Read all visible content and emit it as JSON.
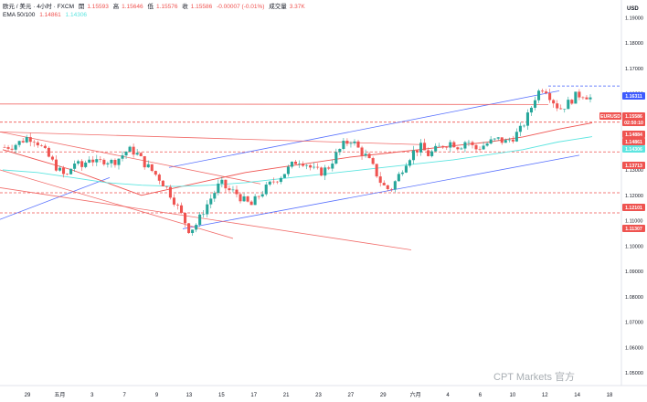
{
  "header": {
    "symbol_line": "欧元 / 美元 · 4小时 · FXCM",
    "open_label": "開",
    "open_value": "1.15593",
    "high_label": "高",
    "high_value": "1.15646",
    "low_label": "低",
    "low_value": "1.15576",
    "close_label": "收",
    "close_value": "1.15586",
    "change": "-0.00007 (-0.01%)",
    "volume_label": "成交量",
    "volume_value": "3.37K",
    "ema_label": "EMA 50/100",
    "ema50_value": "1.14861",
    "ema100_value": "1.14306"
  },
  "currency": "USD",
  "watermark": "CPT Markets 官方",
  "chart_data": {
    "type": "candlestick",
    "interval": "4h",
    "symbol": "EURUSD",
    "y_axis": {
      "ticks": [
        1.19,
        1.18,
        1.17,
        1.16,
        1.15,
        1.14,
        1.13,
        1.12,
        1.11,
        1.1,
        1.09,
        1.08,
        1.07,
        1.06,
        1.05
      ],
      "tick_labels": [
        "1.19000",
        "1.18000",
        "1.17000",
        "1.16000",
        "1.15000",
        "1.14000",
        "1.13000",
        "1.12000",
        "1.11000",
        "1.10000",
        "1.09000",
        "1.08000",
        "1.07000",
        "1.06000",
        "1.05000"
      ],
      "range": [
        1.045,
        1.197
      ]
    },
    "x_axis": {
      "labels": [
        "29",
        "五月",
        "3",
        "7",
        "9",
        "13",
        "15",
        "17",
        "21",
        "23",
        "27",
        "29",
        "六月",
        "4",
        "6",
        "10",
        "12",
        "14",
        "18"
      ]
    },
    "ohlc_path": [
      1.139,
      1.1395,
      1.141,
      1.143,
      1.142,
      1.138,
      1.134,
      1.13,
      1.127,
      1.133,
      1.131,
      1.135,
      1.1325,
      1.134,
      1.133,
      1.135,
      1.138,
      1.137,
      1.133,
      1.13,
      1.127,
      1.123,
      1.118,
      1.112,
      1.106,
      1.109,
      1.115,
      1.12,
      1.125,
      1.122,
      1.121,
      1.118,
      1.116,
      1.12,
      1.123,
      1.126,
      1.128,
      1.131,
      1.134,
      1.133,
      1.13,
      1.129,
      1.131,
      1.136,
      1.14,
      1.142,
      1.138,
      1.135,
      1.13,
      1.124,
      1.122,
      1.127,
      1.133,
      1.137,
      1.139,
      1.136,
      1.138,
      1.14,
      1.141,
      1.139,
      1.142,
      1.138,
      1.1395,
      1.141,
      1.142,
      1.141,
      1.143,
      1.146,
      1.152,
      1.16,
      1.163,
      1.158,
      1.154,
      1.156,
      1.159,
      1.16,
      1.1586
    ],
    "ema50": [
      1.138,
      1.134,
      1.13,
      1.125,
      1.12,
      1.123,
      1.126,
      1.129,
      1.131,
      1.133,
      1.135,
      1.1365,
      1.138,
      1.1395,
      1.141,
      1.143,
      1.146,
      1.1486
    ],
    "ema100": [
      1.13,
      1.129,
      1.127,
      1.125,
      1.124,
      1.1235,
      1.124,
      1.125,
      1.1265,
      1.128,
      1.1295,
      1.131,
      1.1325,
      1.134,
      1.136,
      1.138,
      1.141,
      1.1431
    ],
    "horizontal_levels": [
      {
        "price": 1.16311,
        "label": "1.16311",
        "style": "dashed",
        "color": "#3d5afe"
      },
      {
        "price": 1.14884,
        "label": "1.14884",
        "style": "dashed",
        "color": "#ef5350"
      },
      {
        "price": 1.13713,
        "label": "1.13713",
        "style": "dashed",
        "color": "#ef5350"
      },
      {
        "price": 1.12101,
        "label": "1.12101",
        "style": "dashed",
        "color": "#ef5350"
      },
      {
        "price": 1.11307,
        "label": "1.11307",
        "style": "dashed",
        "color": "#ef5350"
      }
    ],
    "price_badges": [
      {
        "label": "1.16311",
        "color": "#3d5afe"
      },
      {
        "label": "EURUSD",
        "color": "#ef5350"
      },
      {
        "label": "1.15586",
        "color": "#ef5350"
      },
      {
        "label": "02:50:10",
        "color": "#ef5350"
      },
      {
        "label": "1.14884",
        "color": "#ef5350"
      },
      {
        "label": "1.14861",
        "color": "#ef5350"
      },
      {
        "label": "1.14306",
        "color": "#5de5e0"
      },
      {
        "label": "1.13713",
        "color": "#ef5350"
      },
      {
        "label": "1.12101",
        "color": "#ef5350"
      },
      {
        "label": "1.11307",
        "color": "#ef5350"
      }
    ],
    "colors": {
      "up": "#26a69a",
      "down": "#ef5350",
      "ema50": "#ef5350",
      "ema100": "#5de5e0",
      "trend_blue": "#3d5afe",
      "trend_red": "#ef5350"
    },
    "grid": false
  }
}
